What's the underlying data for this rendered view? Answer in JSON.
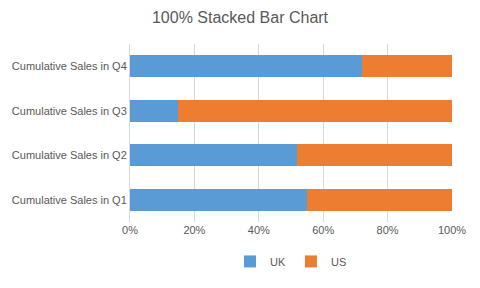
{
  "chart_data": {
    "type": "bar",
    "title": "100% Stacked Bar Chart",
    "orientation": "horizontal",
    "stacked": true,
    "categories": [
      "Cumulative Sales in Q1",
      "Cumulative Sales in Q2",
      "Cumulative Sales in Q3",
      "Cumulative Sales in Q4"
    ],
    "series": [
      {
        "name": "UK",
        "color": "#5b9bd5",
        "values": [
          55,
          52,
          15,
          72
        ]
      },
      {
        "name": "US",
        "color": "#ed7d31",
        "values": [
          45,
          48,
          85,
          28
        ]
      }
    ],
    "xlim": [
      0,
      100
    ],
    "xticks": [
      {
        "value": 0,
        "label": "0%"
      },
      {
        "value": 20,
        "label": "20%"
      },
      {
        "value": 40,
        "label": "40%"
      },
      {
        "value": 60,
        "label": "60%"
      },
      {
        "value": 80,
        "label": "80%"
      },
      {
        "value": 100,
        "label": "100%"
      }
    ],
    "grid": true,
    "legend": "bottom"
  }
}
